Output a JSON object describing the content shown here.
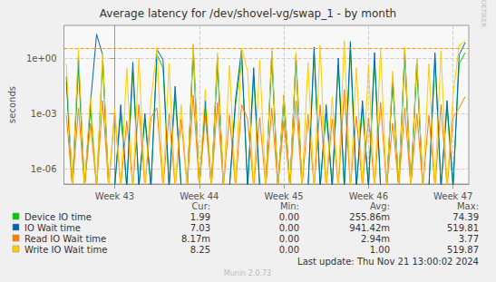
{
  "chart_data": {
    "type": "line",
    "title": "Average latency for /dev/shovel-vg/swap_1 - by month",
    "y_label": "seconds",
    "log": "y",
    "grid": true,
    "legend": "bottom",
    "x": [
      -4,
      -3.5,
      -3,
      -2.5,
      -2,
      -1.5,
      -1,
      -0.5,
      0,
      0.5,
      1,
      1.5,
      2,
      2.5,
      3,
      3.5,
      4,
      4.5,
      5,
      5.5,
      6,
      6.5,
      7,
      7.5,
      8,
      8.5,
      9,
      9.5,
      10,
      10.5,
      11,
      11.5,
      12,
      12.5,
      13,
      13.5,
      14,
      14.5,
      15,
      15.5,
      16,
      16.5,
      17,
      17.5,
      18,
      18.5,
      19,
      19.5,
      20,
      20.5,
      21,
      21.5,
      22,
      22.5,
      23,
      23.5,
      24,
      24.5,
      25,
      25.5,
      26,
      26.5,
      27,
      27.5,
      28,
      28.5,
      29
    ],
    "xlim": [
      -4.2,
      29.3
    ],
    "xticks": [
      {
        "value": 0,
        "label": "Week 43"
      },
      {
        "value": 7,
        "label": "Week 44"
      },
      {
        "value": 14,
        "label": "Week 45"
      },
      {
        "value": 21,
        "label": "Week 46"
      },
      {
        "value": 28,
        "label": "Week 47"
      }
    ],
    "ylim": [
      1.5e-07,
      60
    ],
    "yticks": [
      {
        "value": 1e-06,
        "label": "1e-06"
      },
      {
        "value": 0.001,
        "label": "1e-03"
      },
      {
        "value": 1,
        "label": "1e+00"
      }
    ],
    "reference_line": 3.5,
    "legend_columns": [
      "Cur:",
      "Min:",
      "Avg:",
      "Max:"
    ],
    "series": [
      {
        "name": "Device IO time",
        "color": "#00cc00",
        "stats": [
          "1.99",
          "0.00",
          "255.86m",
          "74.39"
        ],
        "values": [
          0.05,
          1e-07,
          0.3,
          1e-07,
          0.002,
          1e-07,
          0.8,
          1e-07,
          1e-07,
          0.001,
          1e-07,
          0.2,
          1e-07,
          0.0005,
          1e-07,
          1.5,
          0.3,
          1e-07,
          0.01,
          1e-07,
          1e-07,
          2,
          1e-07,
          0.002,
          1e-07,
          0.5,
          1e-07,
          1e-07,
          0.003,
          1.2,
          1e-07,
          0.1,
          1e-07,
          1e-07,
          0.9,
          1e-07,
          0.004,
          1e-07,
          0.6,
          1e-07,
          1e-07,
          1.8,
          1e-07,
          0.001,
          1e-07,
          0.4,
          1e-07,
          2.5,
          1e-07,
          0.002,
          1e-07,
          0.7,
          1e-07,
          1e-07,
          0.05,
          1e-07,
          1.1,
          1e-07,
          0.3,
          1e-07,
          1e-07,
          0.8,
          1e-07,
          0.002,
          1e-07,
          0.5,
          1.99
        ]
      },
      {
        "name": "IO Wait time",
        "color": "#0066b3",
        "stats": [
          "7.03",
          "0.00",
          "941.42m",
          "519.81"
        ],
        "values": [
          0.1,
          1e-07,
          1.2,
          1e-07,
          0.004,
          20,
          1.5,
          1e-07,
          1e-07,
          0.003,
          1e-07,
          0.6,
          1e-07,
          0.001,
          1e-07,
          3,
          0.8,
          1e-07,
          0.03,
          1e-07,
          1e-07,
          5,
          1e-07,
          0.005,
          1e-07,
          1.2,
          1e-07,
          1e-07,
          0.006,
          3,
          1e-07,
          0.3,
          1e-07,
          1e-07,
          2.5,
          1e-07,
          0.01,
          1e-07,
          1.5,
          1e-07,
          1e-07,
          4,
          1e-07,
          0.003,
          1e-07,
          1,
          1e-07,
          8,
          1e-07,
          0.005,
          1e-07,
          2,
          1e-07,
          1e-07,
          0.1,
          1e-07,
          3,
          1e-07,
          0.9,
          1e-07,
          1e-07,
          2,
          1e-07,
          0.005,
          1e-07,
          1.5,
          7.03
        ]
      },
      {
        "name": "Read IO Wait time",
        "color": "#ff8000",
        "stats": [
          "8.17m",
          "0.00",
          "2.94m",
          "3.77"
        ],
        "values": [
          0.0008,
          1e-07,
          0.002,
          1e-07,
          0.0003,
          1e-07,
          0.005,
          1e-07,
          0.001,
          1e-07,
          0.0004,
          1e-07,
          0.003,
          1e-07,
          0.0006,
          0.002,
          1e-07,
          0.0009,
          1e-07,
          0.0005,
          1e-07,
          0.01,
          1e-07,
          0.0007,
          1e-07,
          0.004,
          1e-07,
          0.0008,
          1e-07,
          0.003,
          0.0005,
          1e-07,
          0.0006,
          1e-07,
          0.002,
          1e-07,
          0.0004,
          1e-07,
          0.005,
          1e-07,
          0.0009,
          1e-07,
          0.003,
          1e-07,
          0.0005,
          1e-07,
          0.02,
          1e-07,
          0.0007,
          1e-07,
          0.0006,
          1e-07,
          0.004,
          1e-07,
          0.0003,
          1e-07,
          0.002,
          1e-07,
          0.001,
          1e-07,
          0.0008,
          1e-07,
          0.003,
          1e-07,
          0.0006,
          0.002,
          0.00817
        ]
      },
      {
        "name": "Write IO Wait time",
        "color": "#ffcc00",
        "stats": [
          "8.25",
          "0.00",
          "1.00",
          "519.87"
        ],
        "values": [
          0.5,
          1e-07,
          3,
          1e-07,
          0.01,
          1e-07,
          2,
          1e-07,
          0.002,
          1e-07,
          0.3,
          1e-07,
          1,
          1e-07,
          0.005,
          4,
          1e-07,
          0.5,
          1e-07,
          0.003,
          1e-07,
          6,
          1e-07,
          0.02,
          1e-07,
          2,
          1e-07,
          0.4,
          1e-07,
          3.5,
          0.2,
          1e-07,
          0.8,
          1e-07,
          3,
          1e-07,
          0.01,
          1e-07,
          2,
          1e-07,
          0.6,
          1e-07,
          5,
          1e-07,
          0.008,
          1e-07,
          9,
          1e-07,
          0.3,
          1e-07,
          0.4,
          1e-07,
          3,
          1e-07,
          0.2,
          1e-07,
          4,
          1e-07,
          1,
          1e-07,
          0.5,
          1e-07,
          2.5,
          1e-07,
          0.01,
          5,
          8.25
        ]
      }
    ],
    "annotations": [
      "Last update: Thu Nov 21 13:00:02 2024",
      "Munin 2.0.73",
      "RRDTOOL / TOBI OETIKER"
    ]
  }
}
